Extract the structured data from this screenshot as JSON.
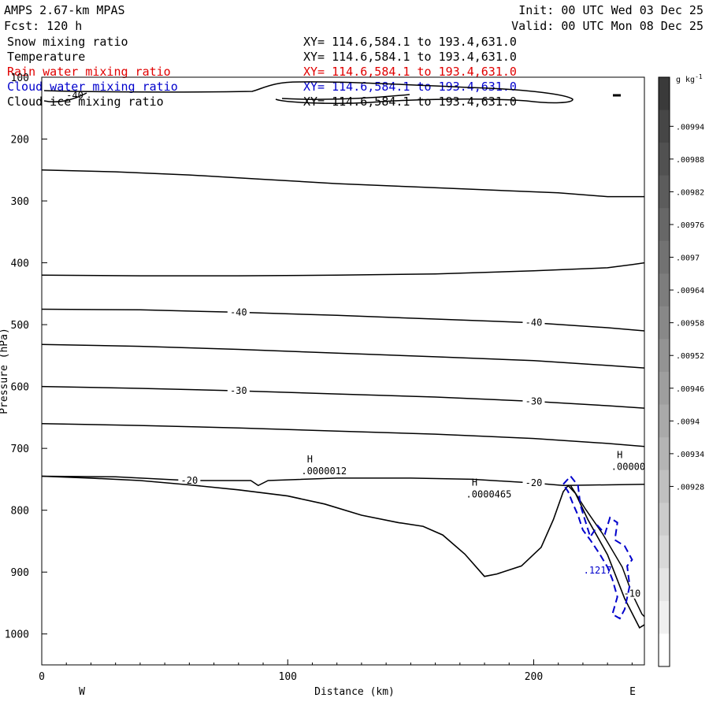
{
  "header": {
    "model": "AMPS 2.67-km MPAS",
    "init": "Init: 00 UTC Wed 03 Dec 25",
    "fcst": "Fcst:  120 h",
    "valid": "Valid: 00 UTC Mon 08 Dec 25"
  },
  "fields": [
    {
      "name": "Snow mixing ratio",
      "xy": "XY= 114.6,584.1 to 193.4,631.0",
      "color": "#000000"
    },
    {
      "name": "Temperature",
      "xy": "XY= 114.6,584.1 to 193.4,631.0",
      "color": "#000000"
    },
    {
      "name": "Rain water mixing ratio",
      "xy": "XY= 114.6,584.1 to 193.4,631.0",
      "color": "#e00000"
    },
    {
      "name": "Cloud water mixing ratio",
      "xy": "XY= 114.6,584.1 to 193.4,631.0",
      "color": "#0000cc"
    },
    {
      "name": "Cloud ice mixing ratio",
      "xy": "XY= 114.6,584.1 to 193.4,631.0",
      "color": "#000000"
    }
  ],
  "chart_data": {
    "type": "line",
    "xlabel": "Distance (km)",
    "ylabel": "Pressure (hPa)",
    "xlim": [
      0,
      245
    ],
    "ylim": [
      100,
      1050
    ],
    "y_scale": "linear, inverted",
    "x_ticks": [
      "0",
      "100",
      "200"
    ],
    "x_tick_values": [
      0,
      100,
      200
    ],
    "y_ticks": [
      "100",
      "200",
      "300",
      "400",
      "500",
      "600",
      "700",
      "800",
      "900",
      "1000"
    ],
    "y_tick_values": [
      100,
      200,
      300,
      400,
      500,
      600,
      700,
      800,
      900,
      1000
    ],
    "west_label": "W",
    "east_label": "E",
    "grid": false,
    "temperature_contours": [
      {
        "label": "",
        "points": [
          [
            0,
            250
          ],
          [
            30,
            253
          ],
          [
            60,
            258
          ],
          [
            90,
            265
          ],
          [
            120,
            272
          ],
          [
            150,
            277
          ],
          [
            180,
            282
          ],
          [
            210,
            287
          ],
          [
            230,
            293
          ],
          [
            245,
            293
          ]
        ]
      },
      {
        "label": "",
        "points": [
          [
            0,
            420
          ],
          [
            40,
            421
          ],
          [
            80,
            421
          ],
          [
            120,
            420
          ],
          [
            160,
            418
          ],
          [
            200,
            413
          ],
          [
            230,
            408
          ],
          [
            240,
            403
          ],
          [
            245,
            400
          ]
        ]
      },
      {
        "label": "-40",
        "points": [
          [
            0,
            475
          ],
          [
            40,
            476
          ],
          [
            80,
            480
          ],
          [
            120,
            485
          ],
          [
            160,
            491
          ],
          [
            200,
            497
          ],
          [
            230,
            505
          ],
          [
            245,
            510
          ]
        ]
      },
      {
        "label": "",
        "points": [
          [
            0,
            532
          ],
          [
            40,
            535
          ],
          [
            80,
            540
          ],
          [
            120,
            546
          ],
          [
            160,
            552
          ],
          [
            200,
            558
          ],
          [
            230,
            566
          ],
          [
            245,
            570
          ]
        ]
      },
      {
        "label": "-30",
        "points": [
          [
            0,
            600
          ],
          [
            40,
            603
          ],
          [
            80,
            607
          ],
          [
            120,
            612
          ],
          [
            160,
            617
          ],
          [
            200,
            624
          ],
          [
            230,
            631
          ],
          [
            245,
            635
          ]
        ]
      },
      {
        "label": "",
        "points": [
          [
            0,
            660
          ],
          [
            40,
            663
          ],
          [
            80,
            667
          ],
          [
            120,
            672
          ],
          [
            160,
            677
          ],
          [
            200,
            684
          ],
          [
            230,
            692
          ],
          [
            245,
            697
          ]
        ]
      },
      {
        "label": "-20",
        "points": [
          [
            0,
            745
          ],
          [
            30,
            746
          ],
          [
            60,
            752
          ],
          [
            85,
            752
          ],
          [
            88,
            760
          ],
          [
            92,
            752
          ],
          [
            120,
            748
          ],
          [
            150,
            748
          ],
          [
            175,
            750
          ],
          [
            200,
            756
          ],
          [
            212,
            760
          ],
          [
            245,
            758
          ]
        ]
      },
      {
        "label": "-10",
        "points": [
          [
            215,
            760
          ],
          [
            221,
            798
          ],
          [
            228,
            838
          ],
          [
            236,
            892
          ],
          [
            240,
            935
          ],
          [
            244,
            968
          ],
          [
            245,
            972
          ]
        ]
      }
    ],
    "top_contour_label": "-40",
    "terrain": [
      [
        0,
        745
      ],
      [
        20,
        748
      ],
      [
        40,
        752
      ],
      [
        60,
        759
      ],
      [
        80,
        767
      ],
      [
        100,
        777
      ],
      [
        115,
        790
      ],
      [
        130,
        808
      ],
      [
        145,
        820
      ],
      [
        155,
        826
      ],
      [
        163,
        840
      ],
      [
        172,
        871
      ],
      [
        180,
        907
      ],
      [
        185,
        903
      ],
      [
        195,
        890
      ],
      [
        203,
        860
      ],
      [
        208,
        815
      ],
      [
        212,
        770
      ],
      [
        214,
        760
      ],
      [
        217,
        773
      ],
      [
        222,
        815
      ],
      [
        230,
        872
      ],
      [
        237,
        943
      ],
      [
        243,
        990
      ],
      [
        245,
        985
      ]
    ],
    "cloud_water_contour": {
      "color": "#0000cc",
      "label": ".1217",
      "points": [
        [
          212,
          758
        ],
        [
          215,
          745
        ],
        [
          218,
          760
        ],
        [
          219,
          792
        ],
        [
          221,
          818
        ],
        [
          223,
          843
        ],
        [
          226,
          825
        ],
        [
          229,
          838
        ],
        [
          231,
          812
        ],
        [
          234,
          820
        ],
        [
          233,
          848
        ],
        [
          237,
          858
        ],
        [
          240,
          880
        ],
        [
          238,
          890
        ],
        [
          239,
          922
        ],
        [
          237,
          960
        ],
        [
          235,
          975
        ],
        [
          232,
          968
        ],
        [
          234,
          940
        ],
        [
          232,
          912
        ],
        [
          230,
          892
        ],
        [
          227,
          872
        ],
        [
          225,
          860
        ],
        [
          223,
          848
        ],
        [
          220,
          832
        ],
        [
          218,
          808
        ],
        [
          216,
          790
        ],
        [
          214,
          770
        ],
        [
          212,
          758
        ]
      ]
    },
    "extrema": [
      {
        "marker": "H",
        "value": ".0000012",
        "x": 109,
        "p": 723
      },
      {
        "marker": "H",
        "value": ".0000465",
        "x": 176,
        "p": 760
      },
      {
        "marker": "H",
        "value": ".00000",
        "x": 235,
        "p": 716
      }
    ],
    "colorbar": {
      "units": "g kg-1",
      "tick_labels": [
        ".00994",
        ".00988",
        ".00982",
        ".00976",
        ".0097",
        ".00964",
        ".00958",
        ".00952",
        ".00946",
        ".0094",
        ".00934",
        ".00928"
      ],
      "colors": [
        "#3a3a3a",
        "#464646",
        "#515151",
        "#5c5c5c",
        "#676767",
        "#727272",
        "#7d7d7d",
        "#888888",
        "#939393",
        "#9e9e9e",
        "#a9a9a9",
        "#b4b4b4",
        "#c0c0c0",
        "#cccccc",
        "#d8d8d8",
        "#e4e4e4",
        "#f0f0f0",
        "#ffffff"
      ]
    }
  }
}
